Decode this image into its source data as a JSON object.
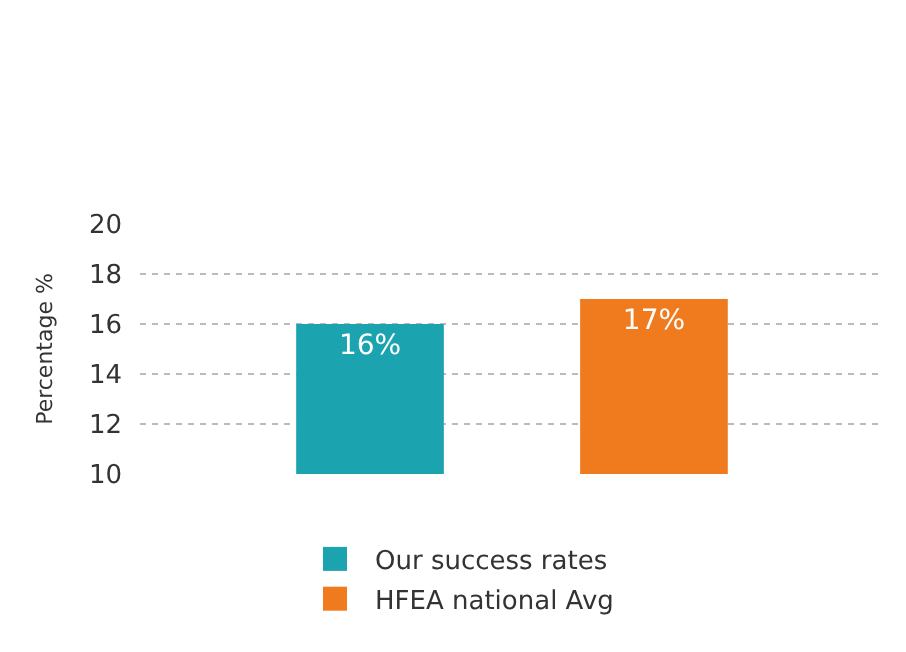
{
  "chart_data": {
    "type": "bar",
    "ylabel": "Percentage %",
    "categories": [
      null,
      null
    ],
    "series": [
      {
        "name": "Our success rates",
        "color": "#1ba3b0",
        "values": [
          16,
          null
        ],
        "value_labels": [
          "16%",
          null
        ]
      },
      {
        "name": "HFEA national Avg",
        "color": "#f07a1e",
        "values": [
          null,
          17
        ],
        "value_labels": [
          null,
          "17%"
        ]
      }
    ],
    "ylim": [
      10,
      20
    ],
    "yticks": [
      10,
      12,
      14,
      16,
      18,
      20
    ],
    "grid": "y",
    "legend": "bottom",
    "tick_labels": "y"
  }
}
